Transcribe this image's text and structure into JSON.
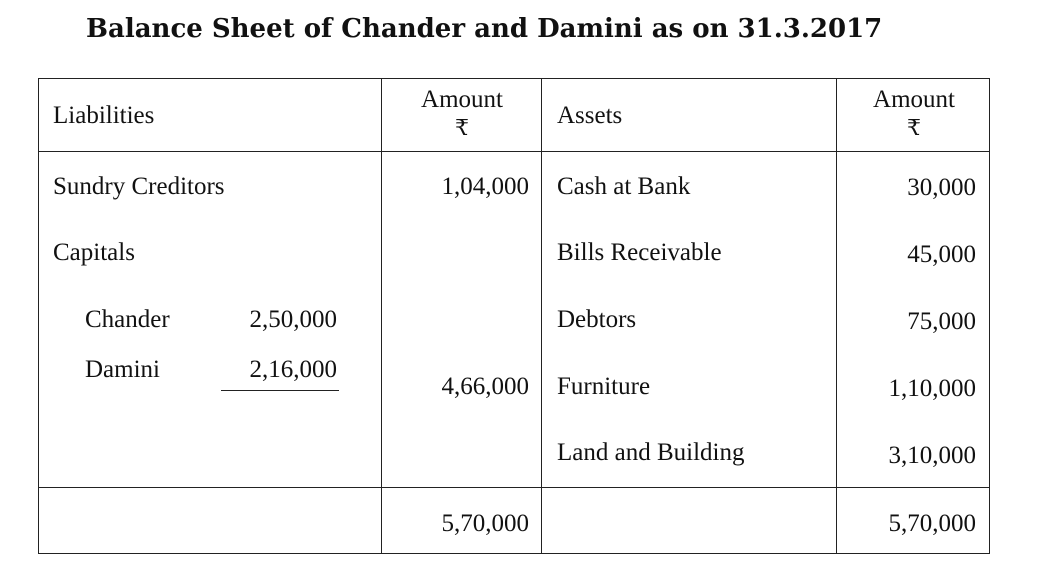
{
  "title": "Balance Sheet of Chander and Damini as on 31.3.2017",
  "header": {
    "liabilities": "Liabilities",
    "amount_label": "Amount",
    "currency": "₹",
    "assets": "Assets"
  },
  "liabilities": {
    "sundry_creditors": {
      "label": "Sundry Creditors",
      "amount": "1,04,000"
    },
    "capitals_label": "Capitals",
    "partners": [
      {
        "name": "Chander",
        "amount": "2,50,000"
      },
      {
        "name": "Damini",
        "amount": "2,16,000"
      }
    ],
    "capitals_total": "4,66,000"
  },
  "assets": [
    {
      "label": "Cash at Bank",
      "amount": "30,000"
    },
    {
      "label": "Bills Receivable",
      "amount": "45,000"
    },
    {
      "label": "Debtors",
      "amount": "75,000"
    },
    {
      "label": "Furniture",
      "amount": "1,10,000"
    },
    {
      "label": "Land and Building",
      "amount": "3,10,000"
    }
  ],
  "totals": {
    "liabilities_total": "5,70,000",
    "assets_total": "5,70,000"
  }
}
